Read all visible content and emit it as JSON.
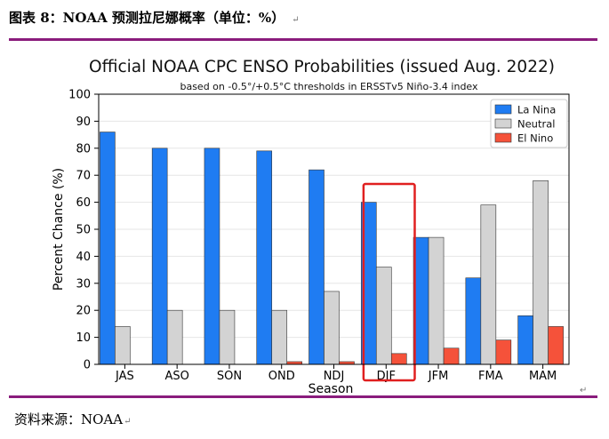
{
  "caption": {
    "title": "图表 8：NOAA 预测拉尼娜概率（单位：%）",
    "source": "资料来源：NOAA",
    "return_mark": "↵"
  },
  "colors": {
    "la_nina": "#1f7cf2",
    "neutral": "#d3d3d3",
    "el_nino": "#f5523a",
    "highlight": "#e02020",
    "rule": "#8a1c7c"
  },
  "chart_data": {
    "type": "bar",
    "title": "Official NOAA CPC ENSO Probabilities (issued Aug. 2022)",
    "subtitle": "based on -0.5°/+0.5°C thresholds in ERSSTv5 Niño-3.4 index",
    "xlabel": "Season",
    "ylabel": "Percent Chance (%)",
    "ylim": [
      0,
      100
    ],
    "yticks": [
      0,
      10,
      20,
      30,
      40,
      50,
      60,
      70,
      80,
      90,
      100
    ],
    "grid": true,
    "legend_position": "top-right",
    "categories": [
      "JAS",
      "ASO",
      "SON",
      "OND",
      "NDJ",
      "DJF",
      "JFM",
      "FMA",
      "MAM"
    ],
    "series": [
      {
        "name": "La Nina",
        "values": [
          86,
          80,
          80,
          79,
          72,
          60,
          47,
          32,
          18
        ]
      },
      {
        "name": "Neutral",
        "values": [
          14,
          20,
          20,
          20,
          27,
          36,
          47,
          59,
          68
        ]
      },
      {
        "name": "El Nino",
        "values": [
          0,
          0,
          0,
          1,
          1,
          4,
          6,
          9,
          14
        ]
      }
    ],
    "highlight_category": "DJF"
  }
}
